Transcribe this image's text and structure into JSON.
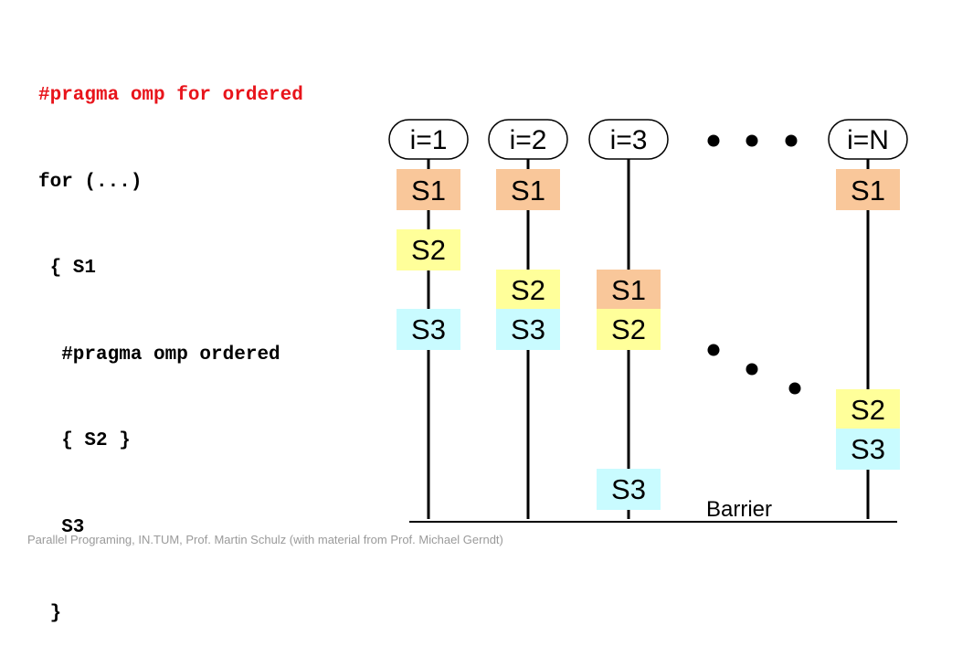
{
  "code": {
    "lines": [
      "#pragma omp for ordered",
      "for (...)",
      " { S1",
      "  #pragma omp ordered",
      "  { S2 }",
      "  S3",
      " }"
    ]
  },
  "iterations": [
    {
      "label": "i=1"
    },
    {
      "label": "i=2"
    },
    {
      "label": "i=3"
    },
    {
      "label": "i=N"
    }
  ],
  "statements": {
    "s1": {
      "label": "S1",
      "color": "#f9c79a"
    },
    "s2": {
      "label": "S2",
      "color": "#ffff9a"
    },
    "s3": {
      "label": "S3",
      "color": "#c9fbff"
    }
  },
  "barrier": {
    "label": "Barrier"
  },
  "footer": {
    "text": "Parallel Programing, IN.TUM, Prof. Martin Schulz (with material from Prof. Michael Gerndt)"
  }
}
